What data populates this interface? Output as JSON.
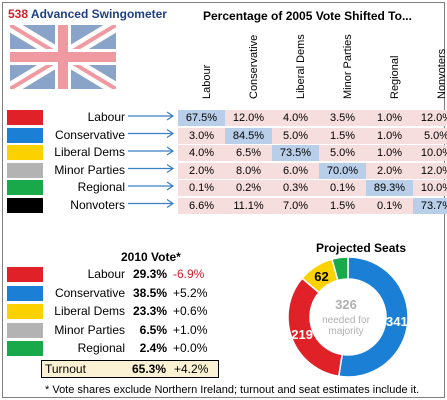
{
  "header": {
    "title_number": "538",
    "title_rest": " Advanced Swingometer",
    "subtitle": "Percentage of 2005 Vote Shifted To..."
  },
  "colors": {
    "labour": "#e02128",
    "conservative": "#1b7fd6",
    "libdem": "#fbd200",
    "minor": "#b3b3b3",
    "regional": "#19a84a",
    "nonvoters": "#000000",
    "negative_text": "#d4202a",
    "title_blue": "#1f3f86",
    "matrix_bg": "#f7dede",
    "matrix_diag": "#b9cfe9"
  },
  "matrix": {
    "columns": [
      "Labour",
      "Conservative",
      "Liberal Dems",
      "Minor Parties",
      "Regional",
      "Nonvoters"
    ],
    "rows": [
      {
        "label": "Labour",
        "values": [
          "67.5%",
          "12.0%",
          "4.0%",
          "3.5%",
          "1.0%",
          "12.0%"
        ]
      },
      {
        "label": "Conservative",
        "values": [
          "3.0%",
          "84.5%",
          "5.0%",
          "1.5%",
          "1.0%",
          "5.0%"
        ]
      },
      {
        "label": "Liberal Dems",
        "values": [
          "4.0%",
          "6.5%",
          "73.5%",
          "5.0%",
          "1.0%",
          "10.0%"
        ]
      },
      {
        "label": "Minor Parties",
        "values": [
          "2.0%",
          "8.0%",
          "6.0%",
          "70.0%",
          "2.0%",
          "12.0%"
        ]
      },
      {
        "label": "Regional",
        "values": [
          "0.1%",
          "0.2%",
          "0.3%",
          "0.1%",
          "89.3%",
          "10.0%"
        ]
      },
      {
        "label": "Nonvoters",
        "values": [
          "6.6%",
          "11.1%",
          "7.0%",
          "1.5%",
          "0.1%",
          "73.7%"
        ]
      }
    ]
  },
  "vote": {
    "header": "2010 Vote*",
    "rows": [
      {
        "label": "Labour",
        "value": "29.3%",
        "change": "-6.9%",
        "negative": true
      },
      {
        "label": "Conservative",
        "value": "38.5%",
        "change": "+5.2%",
        "negative": false
      },
      {
        "label": "Liberal Dems",
        "value": "23.3%",
        "change": "+0.6%",
        "negative": false
      },
      {
        "label": "Minor Parties",
        "value": "6.5%",
        "change": "+1.0%",
        "negative": false
      },
      {
        "label": "Regional",
        "value": "2.4%",
        "change": "+0.0%",
        "negative": false
      }
    ],
    "turnout": {
      "label": "Turnout",
      "value": "65.3%",
      "change": "+4.2%"
    }
  },
  "footnote": "* Vote shares exclude Northern Ireland; turnout and seat estimates include it.",
  "chart_data": {
    "type": "pie",
    "title": "Projected Seats",
    "slices": [
      {
        "value": 341,
        "label": "341",
        "color": "#1b7fd6"
      },
      {
        "value": 219,
        "label": "219",
        "color": "#e02128"
      },
      {
        "value": 62,
        "label": "62",
        "color": "#fbd200"
      },
      {
        "value": 28,
        "label": "",
        "color": "#19a84a"
      }
    ],
    "center_value": "326",
    "center_line1": "needed for",
    "center_line2": "majority"
  }
}
